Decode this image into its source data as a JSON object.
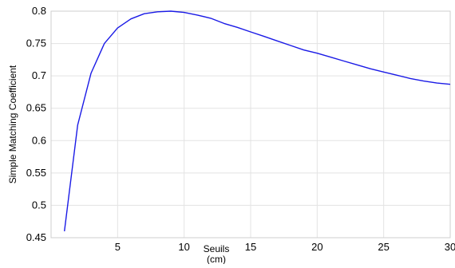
{
  "chart_data": {
    "type": "line",
    "title": "",
    "xlabel_line1": "Seuils",
    "xlabel_line2": "(cm)",
    "ylabel": "Simple Matching Coefficient",
    "xlim": [
      0,
      30
    ],
    "ylim": [
      0.45,
      0.8
    ],
    "xticks": [
      5,
      10,
      15,
      20,
      25,
      30
    ],
    "yticks": [
      0.45,
      0.5,
      0.55,
      0.6,
      0.65,
      0.7,
      0.75,
      0.8
    ],
    "ytick_labels": [
      "0.45",
      "0.5",
      "0.55",
      "0.6",
      "0.65",
      "0.7",
      "0.75",
      "0.8"
    ],
    "grid": true,
    "line_color": "#1a1ae6",
    "series": [
      {
        "x": [
          1,
          2,
          3,
          4,
          5,
          6,
          7,
          8,
          9,
          10,
          11,
          12,
          13,
          14,
          15,
          16,
          17,
          18,
          19,
          20,
          21,
          22,
          23,
          24,
          25,
          26,
          27,
          28,
          29,
          30
        ],
        "y": [
          0.46,
          0.624,
          0.704,
          0.75,
          0.774,
          0.788,
          0.796,
          0.799,
          0.8,
          0.798,
          0.794,
          0.789,
          0.781,
          0.775,
          0.768,
          0.761,
          0.754,
          0.747,
          0.74,
          0.735,
          0.729,
          0.723,
          0.717,
          0.711,
          0.706,
          0.701,
          0.696,
          0.692,
          0.689,
          0.687
        ]
      }
    ]
  }
}
